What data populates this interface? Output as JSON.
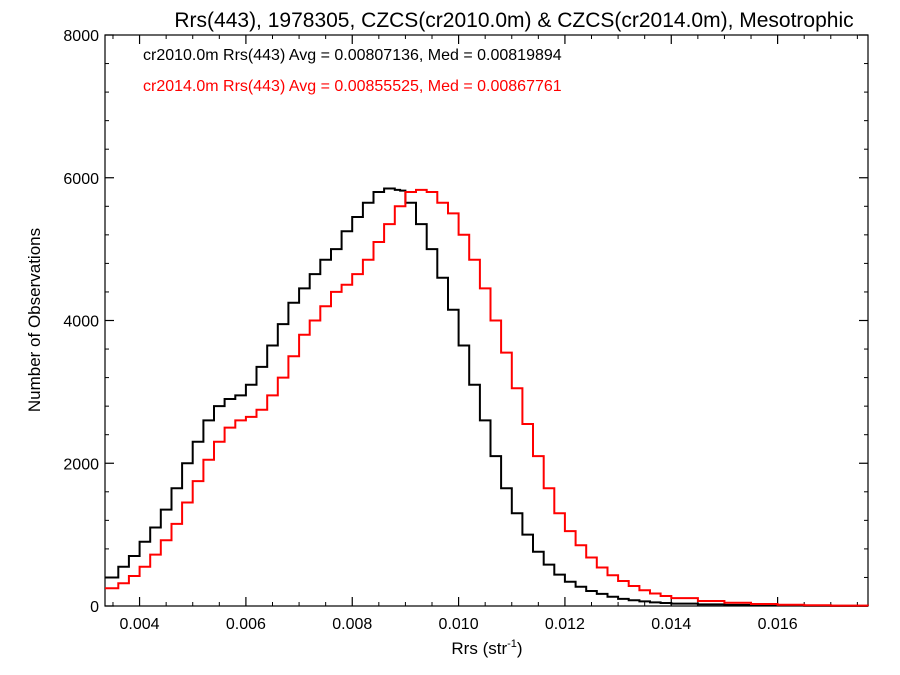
{
  "chart_data": {
    "type": "line",
    "title": "Rrs(443), 1978305, CZCS(cr2010.0m) & CZCS(cr2014.0m), Mesotrophic",
    "xlabel_main": "Rrs (str",
    "xlabel_sup": "-1",
    "xlabel_close": ")",
    "ylabel": "Number of Observations",
    "xlim": [
      0.00335,
      0.0177
    ],
    "ylim": [
      0,
      8000
    ],
    "x_ticks": [
      0.004,
      0.006,
      0.008,
      0.01,
      0.012,
      0.014,
      0.016
    ],
    "x_tick_labels": [
      "0.004",
      "0.006",
      "0.008",
      "0.010",
      "0.012",
      "0.014",
      "0.016"
    ],
    "y_ticks": [
      0,
      2000,
      4000,
      6000,
      8000
    ],
    "y_tick_labels": [
      "0",
      "2000",
      "4000",
      "6000",
      "8000"
    ],
    "step": true,
    "series": [
      {
        "name": "cr2010.0m",
        "color": "#000000",
        "annotation": "cr2010.0m Rrs(443) Avg = 0.00807136, Med = 0.00819894",
        "points": [
          [
            0.00335,
            400
          ],
          [
            0.0036,
            550
          ],
          [
            0.0038,
            700
          ],
          [
            0.004,
            900
          ],
          [
            0.0042,
            1100
          ],
          [
            0.0044,
            1350
          ],
          [
            0.0046,
            1650
          ],
          [
            0.0048,
            2000
          ],
          [
            0.005,
            2300
          ],
          [
            0.0052,
            2600
          ],
          [
            0.0054,
            2800
          ],
          [
            0.0056,
            2900
          ],
          [
            0.0058,
            2950
          ],
          [
            0.006,
            3100
          ],
          [
            0.0062,
            3350
          ],
          [
            0.0064,
            3650
          ],
          [
            0.0066,
            3950
          ],
          [
            0.0068,
            4250
          ],
          [
            0.007,
            4450
          ],
          [
            0.0072,
            4650
          ],
          [
            0.0074,
            4850
          ],
          [
            0.0076,
            5000
          ],
          [
            0.0078,
            5250
          ],
          [
            0.008,
            5450
          ],
          [
            0.0082,
            5650
          ],
          [
            0.0084,
            5800
          ],
          [
            0.0086,
            5850
          ],
          [
            0.0088,
            5830
          ],
          [
            0.0089,
            5820
          ],
          [
            0.009,
            5650
          ],
          [
            0.0092,
            5350
          ],
          [
            0.0094,
            5000
          ],
          [
            0.0096,
            4600
          ],
          [
            0.0098,
            4150
          ],
          [
            0.01,
            3650
          ],
          [
            0.0102,
            3100
          ],
          [
            0.0104,
            2600
          ],
          [
            0.0106,
            2100
          ],
          [
            0.0108,
            1650
          ],
          [
            0.011,
            1300
          ],
          [
            0.0112,
            1000
          ],
          [
            0.0114,
            760
          ],
          [
            0.0116,
            580
          ],
          [
            0.0118,
            440
          ],
          [
            0.012,
            340
          ],
          [
            0.0122,
            270
          ],
          [
            0.0124,
            210
          ],
          [
            0.0126,
            170
          ],
          [
            0.0128,
            130
          ],
          [
            0.013,
            100
          ],
          [
            0.0132,
            80
          ],
          [
            0.0134,
            65
          ],
          [
            0.0136,
            50
          ],
          [
            0.0138,
            42
          ],
          [
            0.014,
            34
          ],
          [
            0.0145,
            22
          ],
          [
            0.015,
            15
          ],
          [
            0.0155,
            10
          ],
          [
            0.016,
            7
          ],
          [
            0.0165,
            4
          ],
          [
            0.017,
            2
          ],
          [
            0.0177,
            1
          ]
        ]
      },
      {
        "name": "cr2014.0m",
        "color": "#ff0000",
        "annotation": "cr2014.0m Rrs(443) Avg = 0.00855525, Med = 0.00867761",
        "points": [
          [
            0.00335,
            250
          ],
          [
            0.0036,
            320
          ],
          [
            0.0038,
            420
          ],
          [
            0.004,
            550
          ],
          [
            0.0042,
            720
          ],
          [
            0.0044,
            920
          ],
          [
            0.0046,
            1150
          ],
          [
            0.0048,
            1450
          ],
          [
            0.005,
            1750
          ],
          [
            0.0052,
            2050
          ],
          [
            0.0054,
            2300
          ],
          [
            0.0056,
            2500
          ],
          [
            0.0058,
            2600
          ],
          [
            0.006,
            2650
          ],
          [
            0.0062,
            2750
          ],
          [
            0.0064,
            2950
          ],
          [
            0.0066,
            3200
          ],
          [
            0.0068,
            3500
          ],
          [
            0.007,
            3800
          ],
          [
            0.0072,
            4000
          ],
          [
            0.0074,
            4200
          ],
          [
            0.0076,
            4400
          ],
          [
            0.0078,
            4500
          ],
          [
            0.008,
            4650
          ],
          [
            0.0082,
            4850
          ],
          [
            0.0084,
            5100
          ],
          [
            0.0086,
            5350
          ],
          [
            0.0088,
            5600
          ],
          [
            0.009,
            5800
          ],
          [
            0.0092,
            5830
          ],
          [
            0.0094,
            5800
          ],
          [
            0.0096,
            5650
          ],
          [
            0.0098,
            5500
          ],
          [
            0.01,
            5200
          ],
          [
            0.0102,
            4850
          ],
          [
            0.0104,
            4450
          ],
          [
            0.0106,
            4000
          ],
          [
            0.0108,
            3550
          ],
          [
            0.011,
            3050
          ],
          [
            0.0112,
            2550
          ],
          [
            0.0114,
            2100
          ],
          [
            0.0116,
            1650
          ],
          [
            0.0118,
            1300
          ],
          [
            0.012,
            1050
          ],
          [
            0.0122,
            850
          ],
          [
            0.0124,
            680
          ],
          [
            0.0126,
            540
          ],
          [
            0.0128,
            430
          ],
          [
            0.013,
            350
          ],
          [
            0.0132,
            280
          ],
          [
            0.0134,
            220
          ],
          [
            0.0136,
            175
          ],
          [
            0.0138,
            140
          ],
          [
            0.014,
            110
          ],
          [
            0.0145,
            70
          ],
          [
            0.015,
            45
          ],
          [
            0.0155,
            28
          ],
          [
            0.016,
            18
          ],
          [
            0.0165,
            11
          ],
          [
            0.017,
            6
          ],
          [
            0.0177,
            3
          ]
        ]
      }
    ],
    "grid": false,
    "legend": "top-left"
  }
}
